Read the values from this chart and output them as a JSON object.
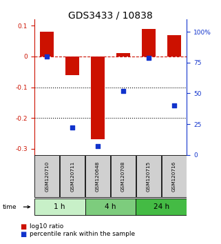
{
  "title": "GDS3433 / 10838",
  "samples": [
    "GSM120710",
    "GSM120711",
    "GSM120648",
    "GSM120708",
    "GSM120715",
    "GSM120716"
  ],
  "log10_ratio": [
    0.08,
    -0.06,
    -0.27,
    0.01,
    0.09,
    0.07
  ],
  "percentile_rank": [
    80,
    22,
    7,
    52,
    79,
    40
  ],
  "time_groups": [
    {
      "label": "1 h",
      "start": 0,
      "end": 2,
      "color": "#c8f0c8"
    },
    {
      "label": "4 h",
      "start": 2,
      "end": 4,
      "color": "#7dcc7d"
    },
    {
      "label": "24 h",
      "start": 4,
      "end": 6,
      "color": "#44bb44"
    }
  ],
  "bar_color": "#cc1100",
  "dot_color": "#1133cc",
  "ylim_left": [
    -0.32,
    0.12
  ],
  "ylim_right": [
    0,
    110
  ],
  "yticks_left": [
    0.1,
    0.0,
    -0.1,
    -0.2,
    -0.3
  ],
  "yticks_right": [
    100,
    75,
    50,
    25,
    0
  ],
  "dotted_lines": [
    -0.1,
    -0.2
  ],
  "bar_width": 0.55,
  "title_fontsize": 10,
  "tick_fontsize": 6.5,
  "legend_fontsize": 6.5,
  "bg_color": "#ffffff",
  "sample_box_color": "#d0d0d0",
  "sample_box_edge": "#888888"
}
